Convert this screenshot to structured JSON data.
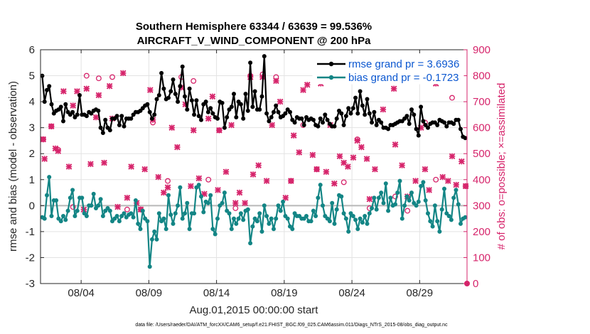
{
  "chart_data": {
    "type": "line",
    "title": "Southern Hemisphere 63344 / 63639 = 99.536%",
    "subtitle": "AIRCRAFT_V_WIND_COMPONENT @ 200 hPa",
    "xlabel": "Aug.01,2015 00:00:00 start",
    "ylabel": "rmse and bias (model - observation)",
    "ylabel_right": "# of obs: o=possible; ×=assimilated",
    "xlim": [
      0,
      31.5
    ],
    "ylim": [
      -3,
      6
    ],
    "ylim_right": [
      0,
      900
    ],
    "x_ticks": [
      3,
      8,
      13,
      18,
      23,
      28
    ],
    "x_tick_labels": [
      "08/04",
      "08/09",
      "08/14",
      "08/19",
      "08/24",
      "08/29"
    ],
    "y_ticks": [
      -3,
      -2,
      -1,
      0,
      1,
      2,
      3,
      4,
      5,
      6
    ],
    "y_right_ticks": [
      0,
      100,
      200,
      300,
      400,
      500,
      600,
      700,
      800,
      900
    ],
    "footer": "data file: /Users/raeder/DAI/ATM_forcXX/CAM6_setup/f.e21.FHIST_BGC.f09_025.CAM6assim.011/Diags_NTrS_2015-08/obs_diag_output.nc",
    "colors": {
      "rmse": "#000000",
      "bias": "#138585",
      "obs": "#d6246b",
      "grid": "#e3e3e3",
      "left_axis": "#262626",
      "right_axis": "#d6246b",
      "legend_text": "#0b57d0"
    },
    "series": [
      {
        "name": "rmse grand pr = 3.6936",
        "axis": "left",
        "values": [
          5.0,
          4.0,
          4.45,
          4.6,
          3.9,
          3.55,
          3.65,
          3.7,
          3.8,
          3.25,
          3.9,
          3.6,
          3.5,
          3.6,
          3.4,
          3.5,
          4.25,
          3.5,
          3.5,
          3.45,
          3.6,
          3.55,
          3.65,
          3.7,
          3.65,
          3.0,
          2.8,
          3.3,
          3.0,
          2.9,
          3.35,
          3.35,
          3.45,
          3.1,
          3.45,
          3.05,
          3.35,
          3.35,
          3.35,
          3.5,
          3.6,
          3.6,
          3.65,
          3.75,
          3.85,
          3.9,
          3.6,
          3.35,
          3.5,
          4.1,
          4.25,
          5.1,
          4.5,
          4.1,
          4.15,
          4.4,
          4.85,
          4.3,
          4.0,
          4.6,
          5.35,
          4.2,
          3.7,
          4.5,
          4.05,
          3.5,
          4.05,
          3.45,
          3.3,
          3.9,
          4.0,
          3.6,
          3.75,
          3.55,
          3.4,
          3.35,
          4.0,
          3.95,
          3.0,
          3.4,
          3.7,
          3.8,
          4.3,
          3.4,
          4.0,
          3.9,
          3.35,
          4.3,
          3.65,
          5.5,
          3.8,
          4.4,
          3.7,
          3.7,
          4.2,
          5.75,
          3.55,
          3.25,
          3.4,
          3.6,
          3.85,
          3.6,
          3.4,
          3.45,
          3.55,
          3.7,
          3.6,
          3.3,
          3.2,
          3.4,
          3.35,
          3.35,
          3.1,
          3.4,
          3.3,
          3.35,
          3.3,
          3.1,
          3.05,
          3.35,
          3.2,
          3.5,
          3.3,
          3.15,
          3.05,
          3.05,
          3.35,
          3.65,
          3.55,
          3.1,
          3.45,
          3.75,
          3.55,
          3.75,
          4.15,
          3.55,
          4.4,
          3.85,
          3.5,
          4.1,
          3.55,
          3.2,
          3.6,
          3.1,
          3.3,
          3.2,
          3.0,
          3.0,
          2.95,
          3.1,
          3.1,
          3.15,
          3.2,
          3.25,
          3.25,
          3.35,
          3.45,
          3.15,
          3.7,
          3.5,
          2.95,
          2.7,
          3.8,
          3.25,
          3.1,
          3.0,
          3.15,
          3.2,
          3.2,
          3.1,
          3.3,
          3.25,
          3.2,
          3.05,
          3.2,
          3.2,
          3.15,
          3.3,
          3.3,
          2.95,
          2.65,
          2.6
        ]
      },
      {
        "name": "bias grand pr = -0.1723",
        "axis": "left",
        "values": [
          -0.45,
          -0.5,
          0.4,
          1.1,
          -0.4,
          0.2,
          0.2,
          -0.5,
          -0.6,
          -0.4,
          -0.55,
          -0.2,
          0.3,
          0.6,
          -0.4,
          -0.2,
          0.3,
          0.3,
          -0.3,
          -0.4,
          0.0,
          0.0,
          0.45,
          -0.1,
          0.0,
          0.25,
          -0.4,
          -0.2,
          -0.1,
          -0.2,
          -0.6,
          -0.5,
          -0.4,
          -0.6,
          -0.4,
          -0.3,
          -0.45,
          -0.35,
          -0.3,
          -0.45,
          0.2,
          -0.7,
          -0.9,
          -0.2,
          -0.5,
          -0.6,
          -2.35,
          -1.3,
          -1.0,
          -1.3,
          -0.3,
          -0.6,
          -0.5,
          -0.9,
          0.4,
          -0.35,
          -0.7,
          -0.3,
          0.0,
          0.7,
          -0.5,
          -0.3,
          0.1,
          -0.9,
          -0.3,
          -0.3,
          0.7,
          0.8,
          0.35,
          -0.25,
          0.15,
          0.1,
          0.4,
          -0.9,
          -1.1,
          -0.5,
          0.0,
          0.1,
          0.5,
          -0.2,
          -0.3,
          -0.9,
          -0.5,
          -0.7,
          -0.5,
          -0.3,
          -0.55,
          -0.2,
          -0.15,
          -1.45,
          -0.8,
          -0.5,
          -0.6,
          -0.3,
          -1.0,
          0.0,
          -0.4,
          -0.7,
          -0.5,
          -0.9,
          -0.5,
          0.0,
          -0.2,
          0.15,
          -0.4,
          -0.5,
          -0.8,
          -0.9,
          -0.3,
          -0.4,
          -0.4,
          -0.5,
          -0.5,
          -0.4,
          -0.6,
          -0.6,
          -0.2,
          -0.4,
          0.3,
          0.8,
          0.0,
          -0.4,
          -0.5,
          -0.6,
          0.1,
          -0.7,
          -0.15,
          0.4,
          0.35,
          -0.3,
          -0.5,
          -1.0,
          -0.3,
          -0.4,
          -0.55,
          -0.9,
          -0.5,
          -0.65,
          -0.4,
          -0.7,
          -0.3,
          -0.1,
          0.3,
          -0.15,
          0.3,
          0.5,
          0.1,
          0.85,
          -0.2,
          0.3,
          0.0,
          0.05,
          0.5,
          0.95,
          -0.5,
          0.0,
          0.35,
          0.2,
          0.5,
          0.1,
          0.0,
          0.15,
          0.75,
          0.9,
          0.2,
          -0.3,
          -0.6,
          -0.8,
          0.0,
          -0.6,
          -1.0,
          -0.15,
          0.65,
          -0.3,
          -0.4,
          -0.55,
          0.3,
          0.6,
          0.05,
          -0.7,
          -0.5,
          -0.45
        ]
      },
      {
        "name": "obs possible (o)",
        "axis": "right",
        "x": [
          0.2,
          0.8,
          1.3,
          2.4,
          3.4,
          4.3,
          5.3,
          6.4,
          7.4,
          8.3,
          9.4,
          10.4,
          11.3,
          12.4,
          13.2,
          14.4,
          15.5,
          16.4,
          17.4,
          18.5,
          19.4,
          20.4,
          21.4,
          22.4,
          23.4,
          24.3,
          25.3,
          26.2,
          27.1,
          28.4,
          29.2,
          30.4,
          31.4
        ],
        "values": [
          555,
          605,
          515,
          295,
          800,
          790,
          795,
          285,
          285,
          620,
          395,
          795,
          780,
          400,
          590,
          290,
          800,
          805,
          795,
          395,
          610,
          440,
          790,
          390,
          555,
          290,
          795,
          335,
          280,
          620,
          400,
          715,
          375
        ]
      },
      {
        "name": "obs assimilated (×)",
        "axis": "right",
        "x": [
          0.2,
          0.3,
          0.8,
          1.1,
          1.3,
          1.7,
          2.1,
          2.4,
          2.7,
          3.2,
          3.4,
          3.7,
          4.1,
          4.3,
          4.7,
          5.1,
          5.3,
          5.7,
          6.1,
          6.4,
          6.7,
          7.1,
          7.4,
          7.7,
          8.1,
          8.3,
          8.7,
          9.1,
          9.4,
          9.7,
          10.1,
          10.4,
          10.7,
          11.1,
          11.3,
          11.7,
          12.1,
          12.4,
          12.7,
          13.1,
          13.2,
          13.7,
          14.1,
          14.4,
          14.7,
          15.1,
          15.5,
          15.7,
          16.1,
          16.4,
          16.7,
          17.1,
          17.4,
          17.7,
          18.1,
          18.5,
          18.7,
          19.1,
          19.4,
          19.7,
          20.1,
          20.4,
          20.7,
          21.1,
          21.4,
          21.7,
          22.1,
          22.4,
          22.7,
          23.1,
          23.4,
          23.7,
          24.1,
          24.3,
          24.7,
          25.1,
          25.3,
          25.7,
          26.1,
          26.2,
          26.7,
          27.1,
          27.4,
          27.7,
          28.1,
          28.4,
          28.7,
          29.1,
          29.2,
          29.7,
          30.1,
          30.4,
          30.7,
          31.1,
          31.4
        ],
        "values": [
          555,
          480,
          605,
          520,
          510,
          740,
          450,
          685,
          740,
          285,
          750,
          460,
          640,
          725,
          465,
          760,
          635,
          295,
          810,
          330,
          450,
          310,
          285,
          440,
          745,
          630,
          410,
          350,
          370,
          600,
          525,
          755,
          690,
          375,
          590,
          405,
          345,
          635,
          720,
          360,
          590,
          430,
          610,
          310,
          350,
          310,
          795,
          420,
          455,
          795,
          395,
          610,
          780,
          700,
          330,
          395,
          570,
          505,
          745,
          765,
          495,
          440,
          770,
          430,
          610,
          385,
          490,
          465,
          450,
          485,
          550,
          525,
          480,
          325,
          440,
          825,
          670,
          815,
          750,
          535,
          455,
          335,
          810,
          395,
          600,
          440,
          360,
          815,
          770,
          410,
          395,
          490,
          380,
          470,
          375
        ]
      }
    ],
    "legend": {
      "location": "top-right",
      "entries": [
        "rmse grand pr = 3.6936",
        "bias grand pr = -0.1723"
      ]
    }
  }
}
